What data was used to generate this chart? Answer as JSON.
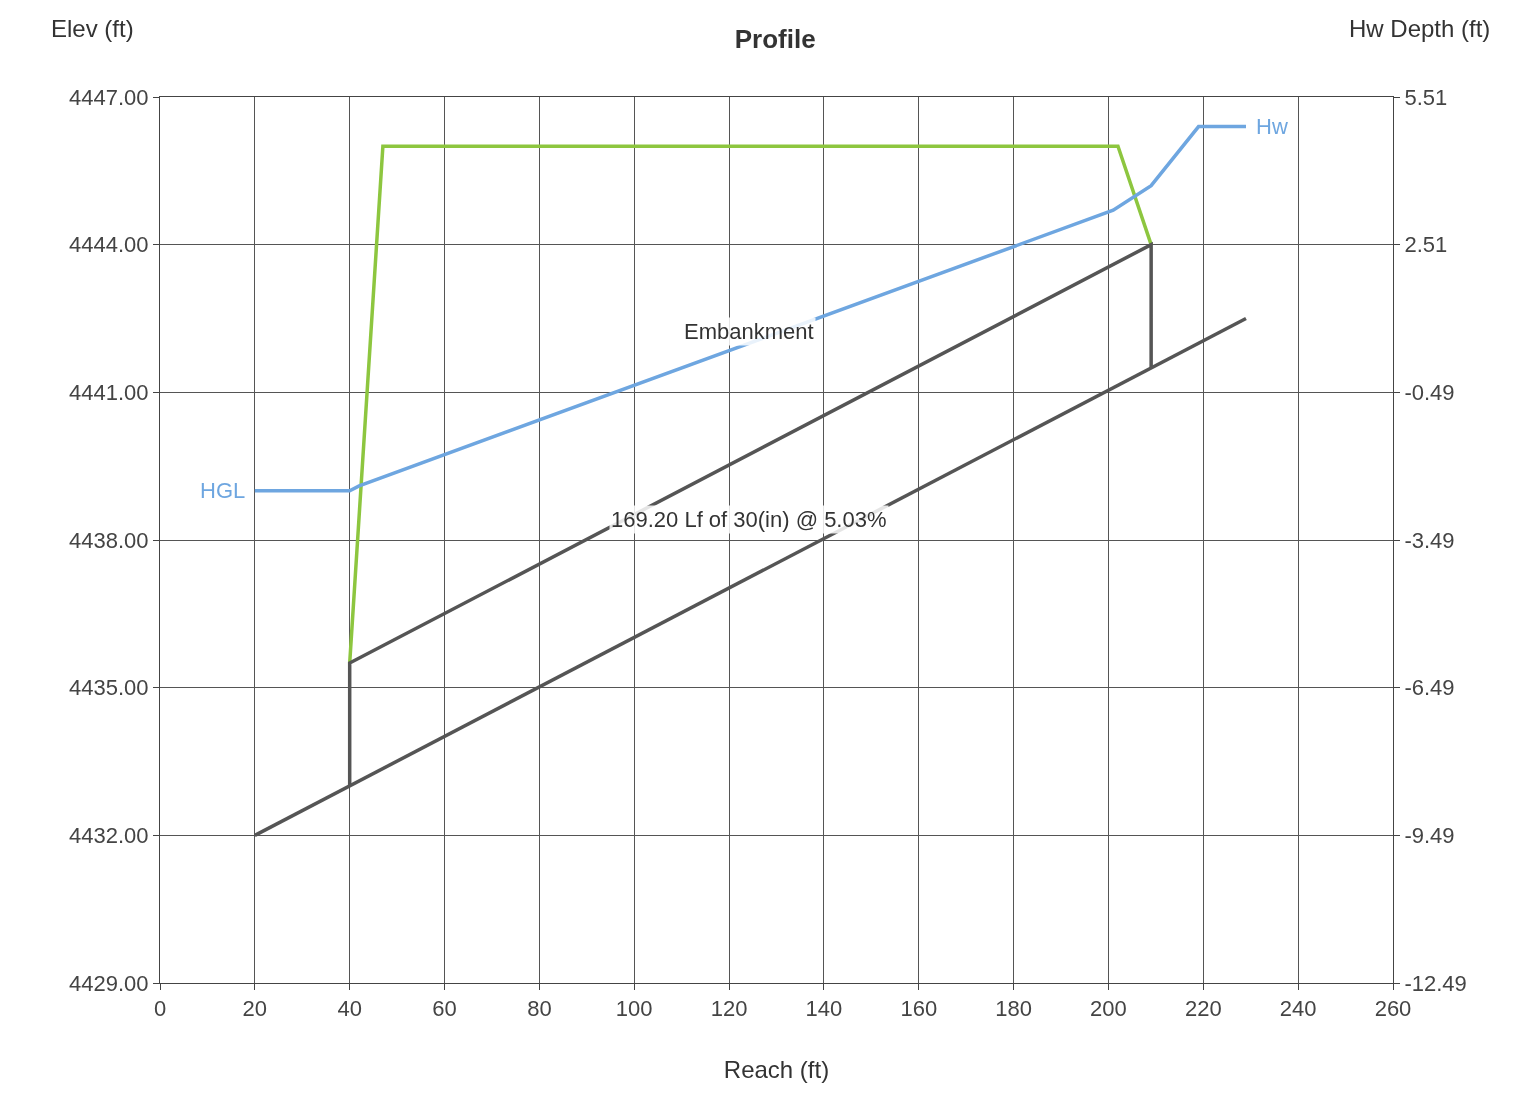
{
  "chart_data": {
    "type": "line",
    "title": "Profile",
    "xlabel": "Reach (ft)",
    "ylabel": "Elev (ft)",
    "y2label": "Hw Depth (ft)",
    "xlim": [
      0,
      260
    ],
    "xticks": [
      0,
      20,
      40,
      60,
      80,
      100,
      120,
      140,
      160,
      180,
      200,
      220,
      240,
      260
    ],
    "ylim": [
      4429,
      4447
    ],
    "yticks": [
      {
        "value": 4429,
        "label": "4429.00"
      },
      {
        "value": 4432,
        "label": "4432.00"
      },
      {
        "value": 4435,
        "label": "4435.00"
      },
      {
        "value": 4438,
        "label": "4438.00"
      },
      {
        "value": 4441,
        "label": "4441.00"
      },
      {
        "value": 4444,
        "label": "4444.00"
      },
      {
        "value": 4447,
        "label": "4447.00"
      }
    ],
    "y2lim": [
      -12.49,
      5.51
    ],
    "y2ticks": [
      -12.49,
      -9.49,
      -6.49,
      -3.49,
      -0.49,
      2.51,
      5.51
    ],
    "grid": true,
    "marker": "none",
    "line_style": "solid",
    "series": [
      {
        "color": "#8dc63f",
        "x": [
          40,
          47,
          202,
          209
        ],
        "values": [
          4435.5,
          4446,
          4446,
          4444
        ]
      },
      {
        "color": "#6ea6e0",
        "x": [
          20,
          40,
          42,
          201,
          209,
          219,
          229
        ],
        "values": [
          4439,
          4439,
          4439.1,
          4444.7,
          4445.2,
          4446.4,
          4446.4
        ]
      },
      {
        "color": "#555555",
        "x": [
          40,
          40,
          209,
          209
        ],
        "values": [
          4433,
          4435.5,
          4444,
          4441.5
        ]
      },
      {
        "color": "#555555",
        "x": [
          20,
          229
        ],
        "values": [
          4432,
          4442.5
        ]
      }
    ],
    "annotations": [
      "Embankment",
      "169.20 Lf of 30(in) @ 5.03%",
      {
        "text": "HGL",
        "x": 20,
        "y": 4439
      },
      {
        "text": "Hw",
        "x": 229,
        "y": 4446.4
      }
    ]
  }
}
